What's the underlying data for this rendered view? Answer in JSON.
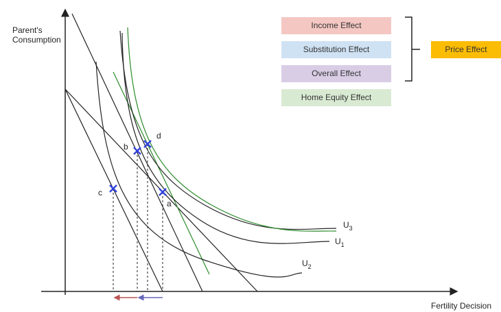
{
  "axes": {
    "y_label": [
      "Parent's",
      "Consumption"
    ],
    "x_label": "Fertility Decision"
  },
  "legend": {
    "items": [
      "Income Effect",
      "Substitution Effect",
      "Overall Effect",
      "Home Equity Effect"
    ],
    "group": "Price Effect"
  },
  "points": [
    "a",
    "b",
    "c",
    "d"
  ],
  "curves": [
    {
      "label": "U",
      "sub": "3"
    },
    {
      "label": "U",
      "sub": "1"
    },
    {
      "label": "U",
      "sub": "2"
    }
  ]
}
